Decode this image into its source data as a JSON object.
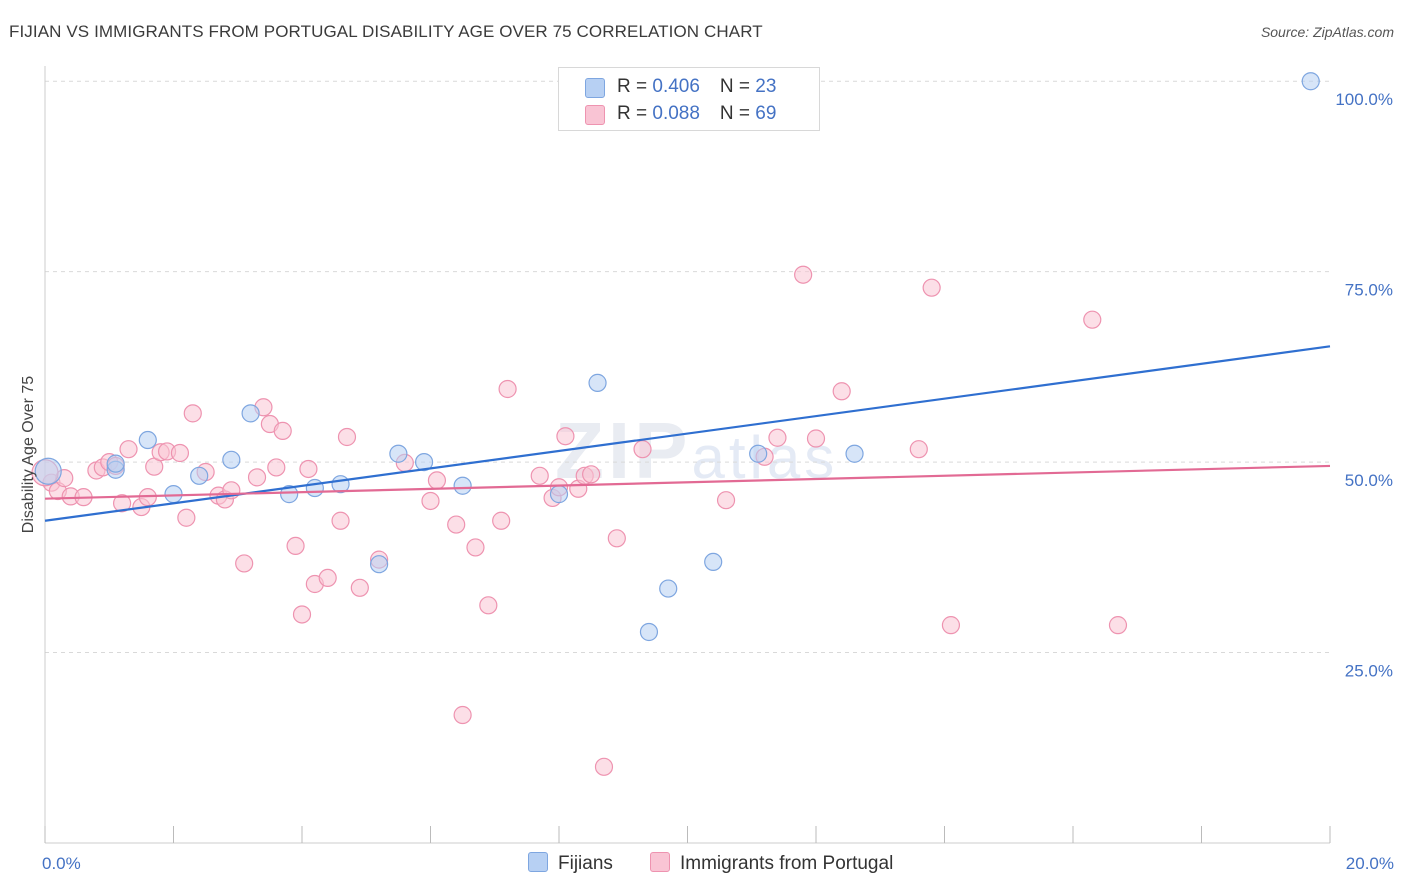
{
  "title": "FIJIAN VS IMMIGRANTS FROM PORTUGAL DISABILITY AGE OVER 75 CORRELATION CHART",
  "source": "Source: ZipAtlas.com",
  "watermark": {
    "bold": "ZIP",
    "light": "atlas"
  },
  "legend_top": [
    {
      "r_label": "R = ",
      "r_value": "0.406",
      "n_label": "N = ",
      "n_value": "23"
    },
    {
      "r_label": "R = ",
      "r_value": "0.088",
      "n_label": "N = ",
      "n_value": "69"
    }
  ],
  "legend_bottom": [
    "Fijians",
    "Immigrants from Portugal"
  ],
  "colors": {
    "fijians_fill": "#b7d0f3",
    "fijians_stroke": "#7ea6e0",
    "fijians_line": "#2f6fd0",
    "portugal_fill": "#f9c4d4",
    "portugal_stroke": "#ee93b0",
    "portugal_line": "#e26a94",
    "grid": "#d9d9d9",
    "tick_text": "#4472c4"
  },
  "chart_data": {
    "type": "scatter",
    "title": "FIJIAN VS IMMIGRANTS FROM PORTUGAL DISABILITY AGE OVER 75 CORRELATION CHART",
    "xlabel": "",
    "ylabel": "Disability Age Over 75",
    "xlim": [
      0,
      20
    ],
    "ylim": [
      0,
      102
    ],
    "x_tick_labels": [
      "0.0%",
      "20.0%"
    ],
    "y_ticks": [
      25,
      50,
      75,
      100
    ],
    "y_tick_labels": [
      "25.0%",
      "50.0%",
      "75.0%",
      "100.0%"
    ],
    "grid": true,
    "legend": "top-center",
    "series": [
      {
        "name": "Fijians",
        "r": 0.406,
        "n": 23,
        "trend": {
          "x": [
            0,
            20
          ],
          "y": [
            42.3,
            65.2
          ]
        },
        "points": [
          [
            0.05,
            48.8
          ],
          [
            1.1,
            49.0
          ],
          [
            1.1,
            49.8
          ],
          [
            1.6,
            52.9
          ],
          [
            2.0,
            45.8
          ],
          [
            2.4,
            48.2
          ],
          [
            2.9,
            50.3
          ],
          [
            3.2,
            56.4
          ],
          [
            3.8,
            45.8
          ],
          [
            4.2,
            46.6
          ],
          [
            4.6,
            47.1
          ],
          [
            5.2,
            36.6
          ],
          [
            5.5,
            51.1
          ],
          [
            5.9,
            50.0
          ],
          [
            6.5,
            46.9
          ],
          [
            8.0,
            45.8
          ],
          [
            8.6,
            60.4
          ],
          [
            9.4,
            27.7
          ],
          [
            9.7,
            33.4
          ],
          [
            10.4,
            36.9
          ],
          [
            11.1,
            51.1
          ],
          [
            12.6,
            51.1
          ],
          [
            19.7,
            100.0
          ]
        ]
      },
      {
        "name": "Immigrants from Portugal",
        "r": 0.088,
        "n": 69,
        "trend": {
          "x": [
            0,
            20
          ],
          "y": [
            45.2,
            49.5
          ]
        },
        "points": [
          [
            0.1,
            47.3
          ],
          [
            0.2,
            46.2
          ],
          [
            0.3,
            47.9
          ],
          [
            0.4,
            45.5
          ],
          [
            0.6,
            45.4
          ],
          [
            0.8,
            48.9
          ],
          [
            0.9,
            49.3
          ],
          [
            1.0,
            50.0
          ],
          [
            1.1,
            49.5
          ],
          [
            1.2,
            44.6
          ],
          [
            1.3,
            51.7
          ],
          [
            1.5,
            44.1
          ],
          [
            1.6,
            45.4
          ],
          [
            1.7,
            49.4
          ],
          [
            1.8,
            51.3
          ],
          [
            1.9,
            51.4
          ],
          [
            2.1,
            51.2
          ],
          [
            2.2,
            42.7
          ],
          [
            2.3,
            56.4
          ],
          [
            2.5,
            48.7
          ],
          [
            2.7,
            45.6
          ],
          [
            2.8,
            45.1
          ],
          [
            2.9,
            46.3
          ],
          [
            3.1,
            36.7
          ],
          [
            3.3,
            48.0
          ],
          [
            3.4,
            57.2
          ],
          [
            3.5,
            55.0
          ],
          [
            3.6,
            49.3
          ],
          [
            3.7,
            54.1
          ],
          [
            3.9,
            39.0
          ],
          [
            4.0,
            30.0
          ],
          [
            4.1,
            49.1
          ],
          [
            4.2,
            34.0
          ],
          [
            4.4,
            34.8
          ],
          [
            4.6,
            42.3
          ],
          [
            4.7,
            53.3
          ],
          [
            4.9,
            33.5
          ],
          [
            5.2,
            37.2
          ],
          [
            5.6,
            49.9
          ],
          [
            6.0,
            44.9
          ],
          [
            6.1,
            47.6
          ],
          [
            6.4,
            41.8
          ],
          [
            6.5,
            16.8
          ],
          [
            6.7,
            38.8
          ],
          [
            6.9,
            31.2
          ],
          [
            7.1,
            42.3
          ],
          [
            7.2,
            59.6
          ],
          [
            7.7,
            48.2
          ],
          [
            7.9,
            45.3
          ],
          [
            8.0,
            46.7
          ],
          [
            8.1,
            53.4
          ],
          [
            8.3,
            46.5
          ],
          [
            8.4,
            48.2
          ],
          [
            8.5,
            48.4
          ],
          [
            8.7,
            10.0
          ],
          [
            8.9,
            40.0
          ],
          [
            9.3,
            51.7
          ],
          [
            10.6,
            45.0
          ],
          [
            11.2,
            50.7
          ],
          [
            11.4,
            53.2
          ],
          [
            11.8,
            74.6
          ],
          [
            12.0,
            53.1
          ],
          [
            12.4,
            59.3
          ],
          [
            13.6,
            51.7
          ],
          [
            13.8,
            72.9
          ],
          [
            14.1,
            28.6
          ],
          [
            16.3,
            68.7
          ],
          [
            16.7,
            28.6
          ],
          [
            0.0,
            48.6
          ]
        ]
      }
    ]
  }
}
